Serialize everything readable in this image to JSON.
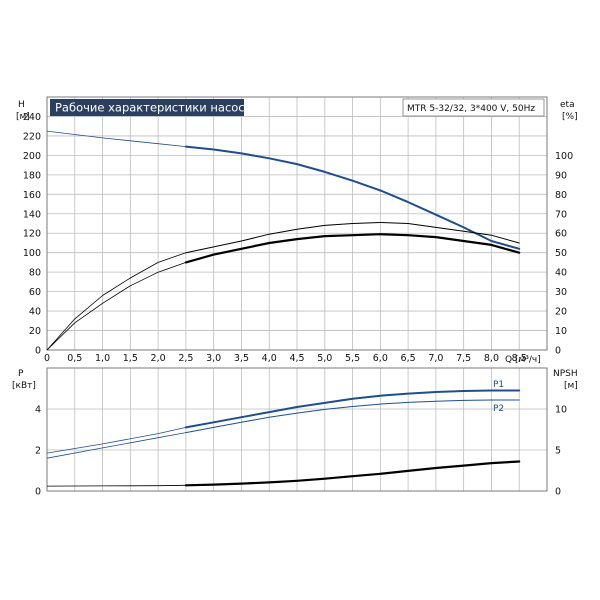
{
  "chart_data": [
    {
      "type": "line",
      "title": "Рабочие характеристики насоса",
      "info": "MTR 5-32/32, 3*400 V, 50Hz",
      "title_bg_color": "#2b4060",
      "x": {
        "label": "Q [м³/ч]",
        "range": [
          0,
          9
        ],
        "ticks": [
          0,
          0.5,
          1.0,
          1.5,
          2.0,
          2.5,
          3.0,
          3.5,
          4.0,
          4.5,
          5.0,
          5.5,
          6.0,
          6.5,
          7.0,
          7.5,
          8.0,
          8.5
        ],
        "tick_labels": [
          "0",
          "0,5",
          "1,0",
          "1,5",
          "2,0",
          "2,5",
          "3,0",
          "3,5",
          "4,0",
          "4,5",
          "5,0",
          "5,5",
          "6,0",
          "6,5",
          "7,0",
          "7,5",
          "8,0",
          "8,5"
        ]
      },
      "y_left": {
        "label": "H",
        "unit": "[м]",
        "range": [
          0,
          260
        ],
        "ticks": [
          0,
          20,
          40,
          60,
          80,
          100,
          120,
          140,
          160,
          180,
          200,
          220,
          240
        ]
      },
      "y_right": {
        "label": "eta",
        "unit": "[%]",
        "range": [
          0,
          130
        ],
        "ticks": [
          0,
          10,
          20,
          30,
          40,
          50,
          60,
          70,
          80,
          90,
          100
        ]
      },
      "grid": true,
      "series": [
        {
          "axis": "left",
          "color": "#1f4e8c",
          "x": [
            0,
            1.0,
            2.0,
            2.5,
            3.0,
            3.5,
            4.0,
            4.5,
            5.0,
            5.5,
            6.0,
            6.5,
            7.0,
            7.5,
            8.0,
            8.5
          ],
          "y": [
            225,
            218,
            212,
            209,
            206,
            202,
            197,
            191,
            183,
            174,
            164,
            152,
            139,
            126,
            112,
            104
          ]
        },
        {
          "axis": "right",
          "color": "#000000",
          "x": [
            0,
            0.5,
            1.0,
            1.5,
            2.0,
            2.5,
            3.0,
            3.5,
            4.0,
            4.5,
            5.0,
            5.5,
            6.0,
            6.5,
            7.0,
            7.5,
            8.0,
            8.5
          ],
          "y": [
            0,
            16,
            28,
            37,
            45,
            50,
            53,
            56,
            59.5,
            62,
            64,
            65,
            65.5,
            65,
            63,
            61,
            59,
            55
          ]
        },
        {
          "axis": "right",
          "color": "#000000",
          "x": [
            0,
            0.5,
            1.0,
            1.5,
            2.0,
            2.5,
            3.0,
            3.5,
            4.0,
            4.5,
            5.0,
            5.5,
            6.0,
            6.5,
            7.0,
            7.5,
            8.0,
            8.5
          ],
          "y": [
            0,
            14,
            24,
            33,
            40,
            45,
            49,
            52,
            55,
            57,
            58.5,
            59,
            59.5,
            59,
            58,
            56,
            54,
            50
          ]
        }
      ]
    },
    {
      "type": "line",
      "x": {
        "label": "",
        "range": [
          0,
          9
        ],
        "ticks": [
          0,
          0.5,
          1.0,
          1.5,
          2.0,
          2.5,
          3.0,
          3.5,
          4.0,
          4.5,
          5.0,
          5.5,
          6.0,
          6.5,
          7.0,
          7.5,
          8.0,
          8.5
        ]
      },
      "y_left": {
        "label": "P",
        "unit": "[кВт]",
        "range": [
          0,
          6
        ],
        "ticks": [
          0,
          2,
          4
        ]
      },
      "y_right": {
        "label": "NPSH",
        "unit": "[м]",
        "range": [
          0,
          15
        ],
        "ticks": [
          0,
          5,
          10
        ]
      },
      "grid": true,
      "series": [
        {
          "name": "P1",
          "axis": "left",
          "color": "#1f4e8c",
          "x": [
            0,
            1.0,
            2.0,
            2.5,
            3.0,
            3.5,
            4.0,
            4.5,
            5.0,
            5.5,
            6.0,
            6.5,
            7.0,
            7.5,
            8.0,
            8.5
          ],
          "y": [
            1.85,
            2.3,
            2.8,
            3.1,
            3.35,
            3.6,
            3.85,
            4.1,
            4.3,
            4.5,
            4.65,
            4.75,
            4.83,
            4.88,
            4.9,
            4.9
          ]
        },
        {
          "name": "P2",
          "axis": "left",
          "color": "#1f4e8c",
          "x": [
            0,
            1.0,
            2.0,
            2.5,
            3.0,
            3.5,
            4.0,
            4.5,
            5.0,
            5.5,
            6.0,
            6.5,
            7.0,
            7.5,
            8.0,
            8.5
          ],
          "y": [
            1.6,
            2.1,
            2.6,
            2.85,
            3.1,
            3.35,
            3.6,
            3.8,
            3.98,
            4.12,
            4.24,
            4.32,
            4.38,
            4.42,
            4.44,
            4.44
          ]
        },
        {
          "axis": "right",
          "color": "#000000",
          "x": [
            0,
            1.0,
            2.0,
            2.5,
            3.0,
            3.5,
            4.0,
            4.5,
            5.0,
            5.5,
            6.0,
            6.5,
            7.0,
            7.5,
            8.0,
            8.5
          ],
          "y": [
            0.6,
            0.62,
            0.65,
            0.7,
            0.78,
            0.9,
            1.05,
            1.25,
            1.5,
            1.8,
            2.1,
            2.45,
            2.8,
            3.1,
            3.4,
            3.6
          ]
        }
      ]
    }
  ]
}
